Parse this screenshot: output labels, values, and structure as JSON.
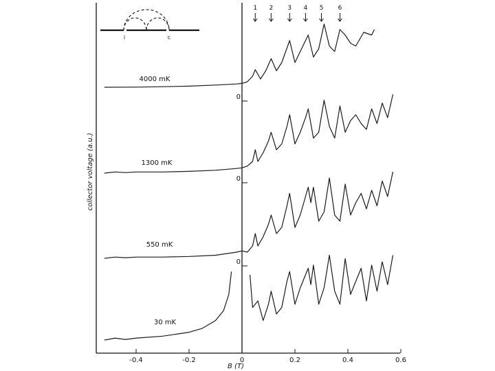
{
  "chart_data": {
    "type": "line",
    "xlabel": "B (T)",
    "ylabel": "collector voltage (a.u.)",
    "xlim": [
      -0.52,
      0.6
    ],
    "x_ticks": [
      "-0.4",
      "-0.2",
      "0",
      "0.2",
      "0.4",
      "0.6"
    ],
    "x_tick_values": [
      -0.4,
      -0.2,
      0,
      0.2,
      0.4,
      0.6
    ],
    "zero_marker_label": "0",
    "grid": false,
    "peak_markers": {
      "labels": [
        "1",
        "2",
        "3",
        "4",
        "5",
        "6"
      ],
      "B": [
        0.05,
        0.11,
        0.18,
        0.24,
        0.3,
        0.37
      ]
    },
    "inset_labels": [
      "i",
      "c"
    ],
    "series": [
      {
        "name": "4000 mK",
        "x": [
          -0.52,
          -0.4,
          -0.3,
          -0.2,
          -0.1,
          -0.02,
          0.0,
          0.02,
          0.04,
          0.05,
          0.07,
          0.09,
          0.11,
          0.13,
          0.15,
          0.18,
          0.2,
          0.22,
          0.24,
          0.25,
          0.27,
          0.29,
          0.31,
          0.33,
          0.35,
          0.37,
          0.39,
          0.41,
          0.43,
          0.46,
          0.49,
          0.5
        ],
        "y": [
          0.0,
          0.002,
          0.01,
          0.02,
          0.04,
          0.06,
          0.07,
          0.1,
          0.2,
          0.32,
          0.15,
          0.3,
          0.52,
          0.3,
          0.45,
          0.85,
          0.45,
          0.65,
          0.85,
          0.95,
          0.55,
          0.7,
          1.15,
          0.75,
          0.65,
          1.05,
          0.95,
          0.8,
          0.75,
          1.0,
          0.95,
          1.05
        ]
      },
      {
        "name": "1300 mK",
        "x": [
          -0.52,
          -0.48,
          -0.44,
          -0.4,
          -0.3,
          -0.2,
          -0.1,
          -0.02,
          0.0,
          0.02,
          0.04,
          0.05,
          0.06,
          0.08,
          0.1,
          0.11,
          0.13,
          0.15,
          0.17,
          0.18,
          0.2,
          0.22,
          0.24,
          0.25,
          0.27,
          0.29,
          0.31,
          0.33,
          0.35,
          0.37,
          0.39,
          0.41,
          0.43,
          0.45,
          0.47,
          0.49,
          0.51,
          0.53,
          0.55,
          0.57
        ],
        "y": [
          0.0,
          0.02,
          0.01,
          0.02,
          0.02,
          0.03,
          0.05,
          0.08,
          0.09,
          0.12,
          0.2,
          0.4,
          0.2,
          0.35,
          0.55,
          0.7,
          0.4,
          0.5,
          0.8,
          1.0,
          0.5,
          0.7,
          0.95,
          1.1,
          0.6,
          0.7,
          1.25,
          0.8,
          0.6,
          1.15,
          0.7,
          0.9,
          1.0,
          0.85,
          0.75,
          1.1,
          0.85,
          1.2,
          0.95,
          1.35
        ]
      },
      {
        "name": "550 mK",
        "x": [
          -0.52,
          -0.48,
          -0.44,
          -0.4,
          -0.3,
          -0.2,
          -0.1,
          -0.02,
          0.0,
          0.02,
          0.04,
          0.05,
          0.06,
          0.08,
          0.1,
          0.11,
          0.13,
          0.15,
          0.17,
          0.18,
          0.2,
          0.22,
          0.24,
          0.25,
          0.26,
          0.27,
          0.29,
          0.31,
          0.33,
          0.35,
          0.37,
          0.39,
          0.41,
          0.43,
          0.45,
          0.47,
          0.49,
          0.51,
          0.53,
          0.55,
          0.57
        ],
        "y": [
          0.0,
          0.02,
          0.01,
          0.02,
          0.02,
          0.03,
          0.05,
          0.1,
          0.12,
          0.1,
          0.2,
          0.4,
          0.2,
          0.35,
          0.55,
          0.7,
          0.4,
          0.5,
          0.85,
          1.05,
          0.5,
          0.7,
          1.0,
          1.15,
          0.9,
          1.15,
          0.6,
          0.75,
          1.3,
          0.7,
          0.6,
          1.2,
          0.7,
          0.9,
          1.05,
          0.8,
          1.1,
          0.85,
          1.25,
          1.0,
          1.4
        ]
      },
      {
        "name": "30 mK",
        "x": [
          -0.52,
          -0.48,
          -0.44,
          -0.4,
          -0.3,
          -0.2,
          -0.15,
          -0.1,
          -0.07,
          -0.05,
          -0.04,
          0.03,
          0.04,
          0.06,
          0.08,
          0.1,
          0.11,
          0.13,
          0.15,
          0.17,
          0.18,
          0.2,
          0.22,
          0.24,
          0.25,
          0.26,
          0.27,
          0.29,
          0.31,
          0.33,
          0.35,
          0.37,
          0.39,
          0.41,
          0.43,
          0.45,
          0.47,
          0.49,
          0.51,
          0.53,
          0.55,
          0.57
        ],
        "y": [
          0.0,
          0.03,
          0.01,
          0.03,
          0.06,
          0.12,
          0.18,
          0.3,
          0.45,
          0.7,
          1.05,
          1.0,
          0.5,
          0.6,
          0.3,
          0.55,
          0.75,
          0.4,
          0.5,
          0.9,
          1.05,
          0.55,
          0.8,
          1.0,
          1.1,
          0.85,
          1.15,
          0.55,
          0.8,
          1.3,
          0.75,
          0.55,
          1.25,
          0.7,
          0.9,
          1.1,
          0.6,
          1.15,
          0.75,
          1.2,
          0.85,
          1.3
        ]
      }
    ]
  }
}
